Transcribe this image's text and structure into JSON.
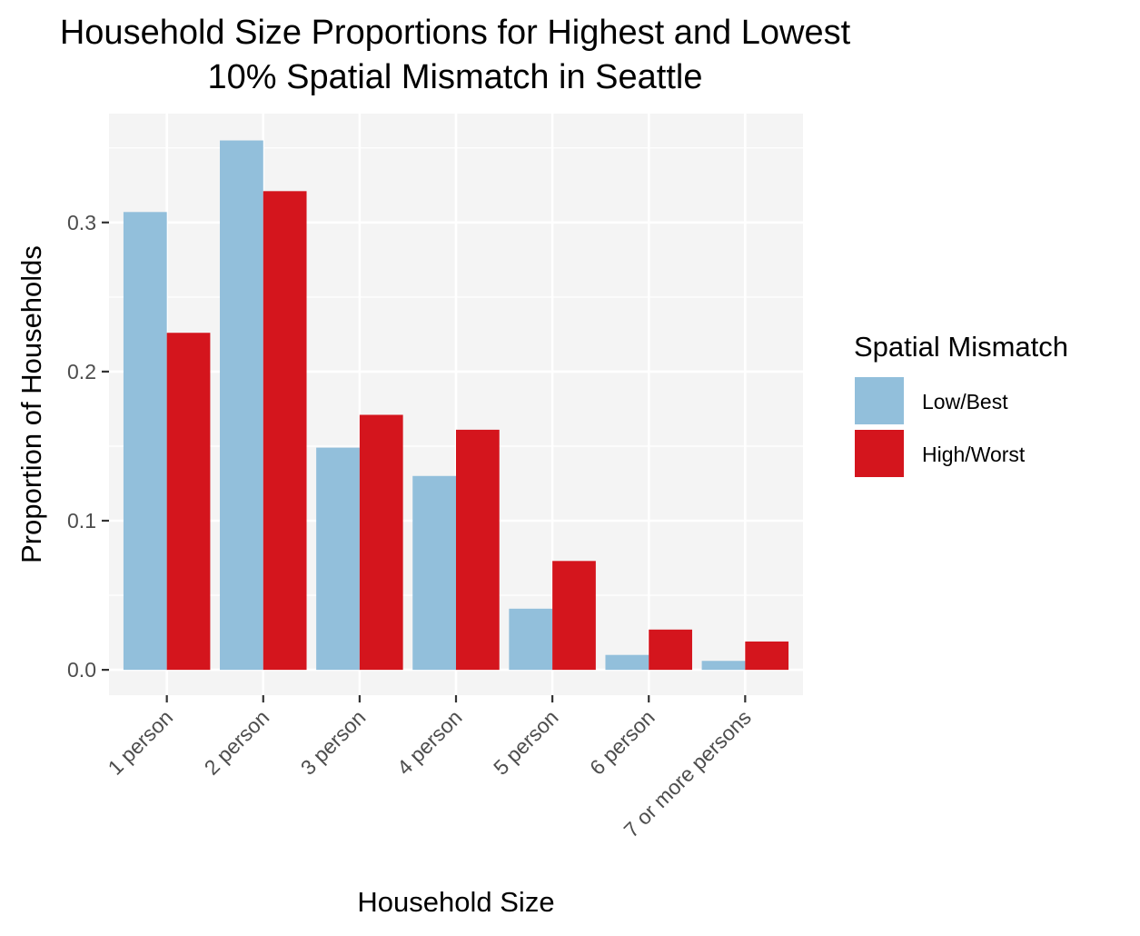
{
  "chart_data": {
    "type": "bar",
    "title_lines": [
      "Household Size Proportions for Highest and Lowest",
      "10% Spatial Mismatch in Seattle"
    ],
    "xlabel": "Household Size",
    "ylabel": "Proportion of Households",
    "categories": [
      "1 person",
      "2 person",
      "3 person",
      "4 person",
      "5 person",
      "6 person",
      "7 or more persons"
    ],
    "series": [
      {
        "name": "Low/Best",
        "color": "#92bfdb",
        "values": [
          0.307,
          0.355,
          0.149,
          0.13,
          0.041,
          0.01,
          0.006
        ]
      },
      {
        "name": "High/Worst",
        "color": "#d4151d",
        "values": [
          0.226,
          0.321,
          0.171,
          0.161,
          0.073,
          0.027,
          0.019
        ]
      }
    ],
    "y_ticks": [
      0.0,
      0.1,
      0.2,
      0.3
    ],
    "y_tick_labels": [
      "0.0",
      "0.1",
      "0.2",
      "0.3"
    ],
    "ylim": [
      -0.017,
      0.373
    ],
    "grid": true,
    "legend": {
      "title": "Spatial Mismatch",
      "position": "right"
    },
    "panel_color": "#f4f4f4",
    "grid_color": "#ffffff"
  }
}
